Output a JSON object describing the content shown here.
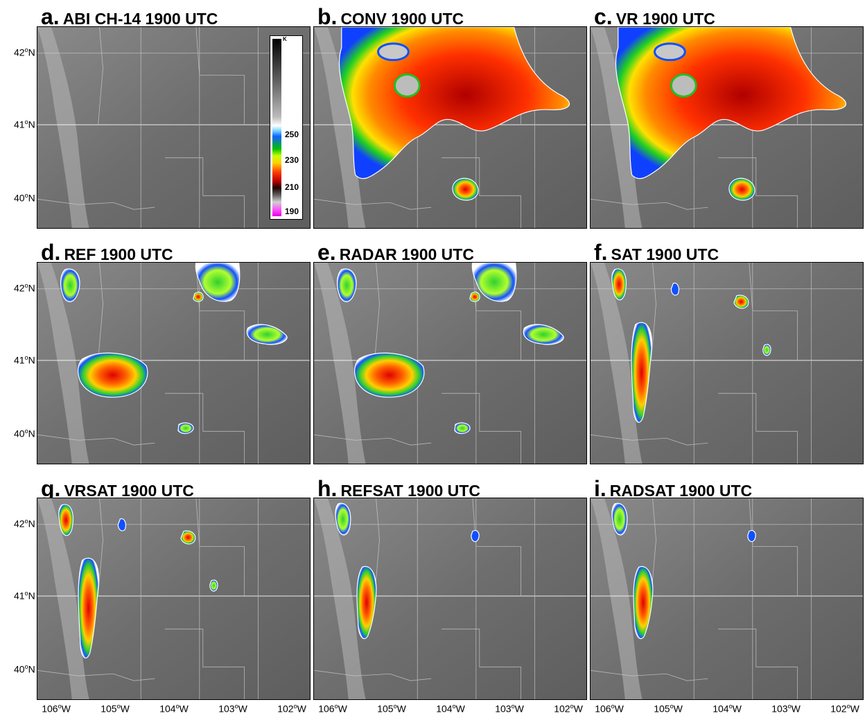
{
  "panels": [
    {
      "letter": "a.",
      "title": "ABI CH-14 1900 UTC",
      "field": "none"
    },
    {
      "letter": "b.",
      "title": "CONV 1900 UTC",
      "field": "conv"
    },
    {
      "letter": "c.",
      "title": "VR 1900 UTC",
      "field": "conv"
    },
    {
      "letter": "d.",
      "title": "REF 1900 UTC",
      "field": "ref"
    },
    {
      "letter": "e.",
      "title": "RADAR 1900 UTC",
      "field": "ref"
    },
    {
      "letter": "f.",
      "title": "SAT 1900 UTC",
      "field": "sat"
    },
    {
      "letter": "g.",
      "title": "VRSAT 1900 UTC",
      "field": "vrsat"
    },
    {
      "letter": "h.",
      "title": "REFSAT 1900 UTC",
      "field": "refsat"
    },
    {
      "letter": "i.",
      "title": "RADSAT 1900 UTC",
      "field": "refsat"
    }
  ],
  "lat_labels": [
    {
      "deg": "42",
      "suffix": "N"
    },
    {
      "deg": "41",
      "suffix": "N"
    },
    {
      "deg": "40",
      "suffix": "N"
    }
  ],
  "lon_labels": [
    {
      "deg": "106",
      "suffix": "W"
    },
    {
      "deg": "105",
      "suffix": "W"
    },
    {
      "deg": "104",
      "suffix": "W"
    },
    {
      "deg": "103",
      "suffix": "W"
    },
    {
      "deg": "102",
      "suffix": "W"
    }
  ],
  "colorbar": {
    "unit": "K",
    "ticks": [
      "250",
      "230",
      "210",
      "190"
    ],
    "colors": {
      "cold_red": "#e00000",
      "mid_yellow": "#ffd000",
      "green": "#20c020",
      "blue": "#1050ff",
      "magenta": "#e000e0"
    }
  }
}
